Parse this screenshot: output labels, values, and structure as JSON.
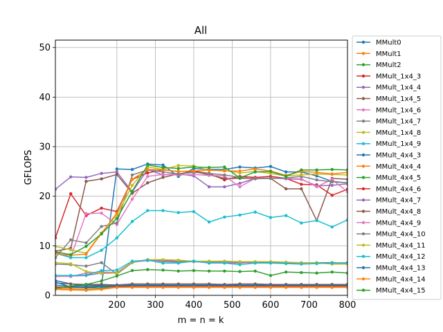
{
  "chart_data": {
    "type": "line",
    "title": "All",
    "xlabel": "m = n = k",
    "ylabel": "GFLOPS",
    "xlim": [
      40,
      800
    ],
    "ylim": [
      0,
      51.5
    ],
    "x_ticks": [
      200,
      300,
      400,
      500,
      600,
      700,
      800
    ],
    "y_ticks": [
      0,
      10,
      20,
      30,
      40,
      50
    ],
    "grid": true,
    "legend_position": "outside-right",
    "x": [
      40,
      80,
      120,
      160,
      200,
      240,
      280,
      320,
      360,
      400,
      440,
      480,
      520,
      560,
      600,
      640,
      680,
      720,
      760,
      800
    ],
    "series": [
      {
        "name": "MMult0",
        "color": "#1f77b4",
        "values": [
          3.0,
          2.3,
          2.0,
          1.9,
          25.5,
          25.4,
          26.5,
          26.3,
          24.0,
          25.6,
          25.4,
          25.4,
          25.9,
          25.7,
          26.0,
          24.9,
          24.9,
          24.1,
          23.0,
          22.7
        ]
      },
      {
        "name": "MMult1",
        "color": "#ff7f0e",
        "values": [
          1.4,
          1.3,
          1.2,
          1.3,
          1.7,
          1.8,
          1.8,
          1.8,
          1.8,
          1.8,
          1.8,
          1.8,
          1.8,
          1.8,
          1.8,
          1.8,
          1.8,
          1.8,
          1.7,
          1.7
        ]
      },
      {
        "name": "MMult2",
        "color": "#2ca02c",
        "values": [
          1.6,
          1.6,
          1.5,
          1.5,
          1.9,
          2.0,
          2.0,
          2.0,
          2.0,
          2.0,
          2.0,
          2.0,
          2.0,
          2.0,
          2.0,
          2.0,
          2.0,
          2.0,
          2.0,
          2.0
        ]
      },
      {
        "name": "MMult_1x4_3",
        "color": "#d62728",
        "values": [
          11.6,
          20.5,
          16.1,
          17.6,
          16.9,
          23.4,
          24.7,
          25.3,
          25.0,
          25.1,
          24.6,
          23.3,
          24.0,
          23.8,
          24.0,
          23.6,
          22.4,
          22.3,
          20.2,
          21.4
        ]
      },
      {
        "name": "MMult_1x4_4",
        "color": "#9467bd",
        "values": [
          21.4,
          23.9,
          23.8,
          24.6,
          24.9,
          20.9,
          25.4,
          24.3,
          24.5,
          24.1,
          21.9,
          21.9,
          22.6,
          23.6,
          23.7,
          23.5,
          23.4,
          22.1,
          22.2,
          22.5
        ]
      },
      {
        "name": "MMult_1x4_5",
        "color": "#8c564b",
        "values": [
          8.9,
          9.5,
          23.0,
          23.5,
          24.4,
          20.6,
          22.7,
          23.8,
          24.5,
          25.0,
          24.3,
          23.6,
          23.6,
          23.6,
          23.6,
          21.5,
          21.5,
          15.1,
          23.6,
          23.4
        ]
      },
      {
        "name": "MMult_1x4_6",
        "color": "#e377c2",
        "values": [
          8.7,
          7.7,
          16.5,
          16.6,
          14.3,
          19.4,
          24.0,
          24.4,
          24.3,
          24.4,
          24.2,
          24.1,
          21.9,
          23.6,
          23.6,
          23.6,
          23.5,
          21.9,
          23.4,
          20.9
        ]
      },
      {
        "name": "MMult_1x4_7",
        "color": "#7f7f7f",
        "values": [
          7.6,
          11.2,
          10.6,
          13.9,
          14.6,
          24.3,
          25.3,
          24.9,
          24.5,
          24.8,
          24.6,
          24.3,
          23.8,
          23.5,
          23.6,
          23.7,
          24.0,
          23.3,
          22.9,
          22.7
        ]
      },
      {
        "name": "MMult_1x4_8",
        "color": "#bcbd22",
        "values": [
          9.9,
          9.2,
          8.5,
          12.6,
          16.2,
          22.2,
          25.9,
          25.4,
          26.2,
          26.1,
          25.2,
          25.2,
          24.7,
          25.0,
          24.6,
          24.1,
          24.3,
          24.5,
          24.4,
          24.3
        ]
      },
      {
        "name": "MMult_1x4_9",
        "color": "#17becf",
        "values": [
          8.5,
          7.6,
          7.6,
          9.1,
          11.6,
          14.9,
          17.1,
          17.1,
          16.7,
          16.9,
          14.8,
          15.8,
          16.2,
          16.8,
          15.7,
          16.1,
          14.6,
          15.1,
          13.8,
          15.2
        ]
      },
      {
        "name": "MMult_4x4_3",
        "color": "#1f77b4",
        "values": [
          2.1,
          1.8,
          2.0,
          2.0,
          1.9,
          2.1,
          2.1,
          2.1,
          2.1,
          2.1,
          2.1,
          2.1,
          2.1,
          2.1,
          2.1,
          2.1,
          2.1,
          2.1,
          2.1,
          2.1
        ]
      },
      {
        "name": "MMult_4x4_4",
        "color": "#ff7f0e",
        "values": [
          8.4,
          8.1,
          8.3,
          12.5,
          16.6,
          23.4,
          25.4,
          25.3,
          25.0,
          25.1,
          25.3,
          25.1,
          25.1,
          25.5,
          25.1,
          24.2,
          25.0,
          24.8,
          24.5,
          24.8
        ]
      },
      {
        "name": "MMult_4x4_5",
        "color": "#2ca02c",
        "values": [
          8.8,
          8.2,
          9.9,
          12.4,
          15.5,
          21.0,
          26.3,
          25.8,
          25.6,
          25.9,
          25.8,
          25.9,
          23.7,
          24.9,
          25.0,
          24.0,
          25.3,
          25.3,
          25.4,
          25.3
        ]
      },
      {
        "name": "MMult_4x4_6",
        "color": "#d62728",
        "values": [
          1.7,
          1.6,
          1.7,
          1.8,
          1.8,
          1.9,
          1.9,
          1.9,
          1.9,
          1.9,
          1.9,
          1.9,
          1.9,
          1.9,
          1.9,
          1.9,
          1.9,
          1.9,
          1.9,
          1.9
        ]
      },
      {
        "name": "MMult_4x4_7",
        "color": "#9467bd",
        "values": [
          3.8,
          3.9,
          4.0,
          4.5,
          4.6,
          6.7,
          7.1,
          6.8,
          6.7,
          6.8,
          6.6,
          6.6,
          6.5,
          6.7,
          6.6,
          6.6,
          6.5,
          6.5,
          6.4,
          6.5
        ]
      },
      {
        "name": "MMult_4x4_8",
        "color": "#8c564b",
        "values": [
          2.5,
          2.3,
          2.2,
          2.2,
          2.1,
          2.3,
          2.3,
          2.3,
          2.3,
          2.3,
          2.3,
          2.2,
          2.3,
          2.3,
          2.2,
          2.2,
          2.2,
          2.2,
          2.2,
          2.2
        ]
      },
      {
        "name": "MMult_4x4_9",
        "color": "#e377c2",
        "values": [
          3.9,
          3.8,
          4.5,
          4.7,
          4.6,
          6.7,
          7.0,
          6.9,
          6.8,
          6.8,
          6.7,
          6.7,
          6.6,
          6.6,
          6.6,
          6.5,
          6.5,
          6.5,
          6.4,
          6.4
        ]
      },
      {
        "name": "MMult_4x4_10",
        "color": "#7f7f7f",
        "values": [
          6.3,
          6.2,
          5.9,
          6.6,
          4.3,
          6.6,
          7.2,
          7.0,
          6.9,
          6.9,
          6.8,
          6.8,
          6.7,
          6.7,
          6.6,
          6.6,
          6.6,
          6.6,
          6.6,
          6.5
        ]
      },
      {
        "name": "MMult_4x4_11",
        "color": "#bcbd22",
        "values": [
          6.6,
          6.4,
          4.8,
          4.4,
          4.5,
          6.7,
          7.2,
          7.2,
          7.1,
          6.9,
          6.9,
          6.9,
          6.8,
          6.8,
          6.8,
          6.7,
          6.6,
          6.6,
          6.3,
          6.3
        ]
      },
      {
        "name": "MMult_4x4_12",
        "color": "#17becf",
        "values": [
          4.0,
          4.0,
          4.1,
          5.0,
          5.1,
          6.9,
          7.1,
          6.5,
          6.5,
          6.9,
          6.5,
          6.5,
          6.2,
          6.5,
          6.5,
          6.4,
          6.3,
          6.4,
          6.5,
          6.6
        ]
      },
      {
        "name": "MMult_4x4_13",
        "color": "#1f77b4",
        "values": [
          2.7,
          1.7,
          1.6,
          1.8,
          1.9,
          2.0,
          2.0,
          2.0,
          2.0,
          2.0,
          2.0,
          2.0,
          2.0,
          2.0,
          2.0,
          2.0,
          2.0,
          2.0,
          2.0,
          2.0
        ]
      },
      {
        "name": "MMult_4x4_14",
        "color": "#ff7f0e",
        "values": [
          1.2,
          1.1,
          1.0,
          1.2,
          1.6,
          1.6,
          1.6,
          1.6,
          1.6,
          1.6,
          1.6,
          1.6,
          1.6,
          1.6,
          1.6,
          1.6,
          1.6,
          1.6,
          1.6,
          1.6
        ]
      },
      {
        "name": "MMult_4x4_15",
        "color": "#2ca02c",
        "values": [
          1.4,
          1.9,
          2.2,
          2.9,
          3.9,
          5.0,
          5.2,
          5.1,
          4.9,
          5.0,
          4.9,
          4.9,
          4.8,
          4.9,
          4.0,
          4.7,
          4.6,
          4.5,
          4.7,
          4.5
        ]
      }
    ]
  }
}
